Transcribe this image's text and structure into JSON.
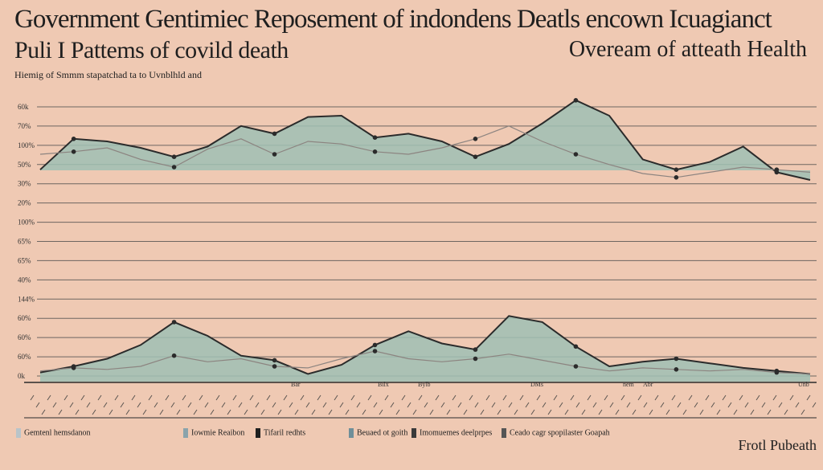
{
  "header": {
    "title_line1": "Government Gentimiec Reposement of indondens Deatls encown Icuagianct",
    "title_line2": "Puli I Pattems of  covild death",
    "title_line3": "Oveream of atteath Health",
    "subtitle": "Hiemig of Smmm stapatchad ta to Uvnblhld and"
  },
  "corner_label": "Frotl Pubeath",
  "colors": {
    "background": "#efc9b3",
    "area_fill": "#9fbfb4",
    "line": "#2b2b2b",
    "grid": "#6e6661",
    "faint": "#8c8480"
  },
  "chart_data": {
    "type": "area",
    "y_tick_labels": [
      "60k",
      "70%",
      "100%",
      "50%",
      "30%",
      "20%",
      "100%",
      "65%",
      "65%",
      "40%",
      "144%",
      "60%",
      "60%",
      "60%",
      "0k"
    ],
    "x_tick_labels": [
      "Bar",
      "Bilx",
      "Bylb",
      "DMs",
      "nem",
      "Abr",
      "Unb"
    ],
    "x": [
      0,
      2,
      4,
      6,
      8,
      10,
      12,
      14,
      16,
      18,
      20,
      22,
      24,
      26,
      28,
      30,
      32,
      34,
      36,
      38,
      40,
      42,
      44,
      46
    ],
    "series": [
      {
        "panel": "upper",
        "values": [
          0.38,
          0.62,
          0.6,
          0.55,
          0.48,
          0.56,
          0.72,
          0.66,
          0.79,
          0.8,
          0.63,
          0.66,
          0.6,
          0.48,
          0.58,
          0.74,
          0.92,
          0.8,
          0.46,
          0.38,
          0.44,
          0.56,
          0.36,
          0.3
        ]
      },
      {
        "panel": "upper",
        "values": [
          0.5,
          0.52,
          0.55,
          0.46,
          0.4,
          0.54,
          0.62,
          0.5,
          0.6,
          0.58,
          0.52,
          0.5,
          0.55,
          0.62,
          0.72,
          0.6,
          0.5,
          0.42,
          0.35,
          0.32,
          0.36,
          0.4,
          0.38,
          0.36
        ]
      },
      {
        "panel": "lower",
        "values": [
          0.12,
          0.2,
          0.3,
          0.48,
          0.78,
          0.6,
          0.34,
          0.28,
          0.1,
          0.22,
          0.48,
          0.66,
          0.5,
          0.42,
          0.86,
          0.78,
          0.46,
          0.2,
          0.26,
          0.3,
          0.24,
          0.18,
          0.14,
          0.1
        ]
      },
      {
        "panel": "lower",
        "values": [
          0.14,
          0.18,
          0.16,
          0.2,
          0.34,
          0.26,
          0.3,
          0.2,
          0.18,
          0.3,
          0.4,
          0.3,
          0.26,
          0.3,
          0.36,
          0.28,
          0.2,
          0.14,
          0.18,
          0.16,
          0.14,
          0.16,
          0.12,
          0.1
        ]
      }
    ],
    "grid": true
  },
  "legend": [
    {
      "label": "Gemtenl hemsdanon",
      "color": "#b9c4c9"
    },
    {
      "label": "Iowmie Reaibon",
      "color": "#8aa3ab"
    },
    {
      "label": "Tifaril redhts",
      "color": "#1f1f1f"
    },
    {
      "label": "Beuaed ot goith",
      "color": "#6f8f99"
    },
    {
      "label": "Imomuemes deelprpes",
      "color": "#3a3a3a"
    },
    {
      "label": "Ceado cagr spopilaster Goapah",
      "color": "#555555"
    }
  ]
}
